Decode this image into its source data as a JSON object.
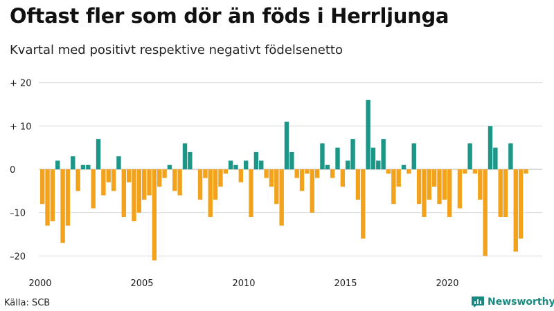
{
  "chart_data": {
    "type": "bar",
    "title": "Oftast fler som dör än föds i Herrljunga",
    "subtitle": "Kvartal med positivt respektive negativt födelsenetto",
    "xlabel": "",
    "ylabel": "",
    "ylim": [
      -22,
      20
    ],
    "y_ticks": [
      {
        "value": 20,
        "label": "+ 20"
      },
      {
        "value": 10,
        "label": "+ 10"
      },
      {
        "value": 0,
        "label": "0"
      },
      {
        "value": -10,
        "label": "–10"
      },
      {
        "value": -20,
        "label": "–20"
      }
    ],
    "x_ticks": [
      {
        "year": 2000,
        "label": "2000"
      },
      {
        "year": 2005,
        "label": "2005"
      },
      {
        "year": 2010,
        "label": "2010"
      },
      {
        "year": 2015,
        "label": "2015"
      },
      {
        "year": 2020,
        "label": "2020"
      }
    ],
    "start_year": 2000,
    "periods_per_year": 4,
    "grid": true,
    "values": [
      -8,
      -13,
      -12,
      2,
      -17,
      -13,
      3,
      -5,
      1,
      1,
      -9,
      7,
      -6,
      -3,
      -5,
      3,
      -11,
      -3,
      -12,
      -10,
      -7,
      -6,
      -21,
      -4,
      -2,
      1,
      -5,
      -6,
      6,
      4,
      0,
      -7,
      -2,
      -11,
      -7,
      -4,
      -1,
      2,
      1,
      -3,
      2,
      -11,
      4,
      2,
      -2,
      -4,
      -8,
      -13,
      11,
      4,
      -2,
      -5,
      -1,
      -10,
      -2,
      6,
      1,
      -2,
      5,
      -4,
      2,
      7,
      -7,
      -16,
      16,
      5,
      2,
      7,
      -1,
      -8,
      -4,
      1,
      -1,
      6,
      -8,
      -11,
      -7,
      -4,
      -8,
      -7,
      -11,
      0,
      -9,
      -1,
      6,
      -1,
      -7,
      -20,
      10,
      5,
      -11,
      -11,
      6,
      -19,
      -16,
      -1
    ],
    "colors": {
      "positive": "#1b9687",
      "negative": "#f3a21c",
      "grid": "#dcdcdc",
      "zero_line": "#b5b5b5"
    }
  },
  "source": "Källa: SCB",
  "brand": {
    "name": "Newsworthy",
    "icon": "newsworthy-logo-icon",
    "color": "#1a8a80"
  }
}
